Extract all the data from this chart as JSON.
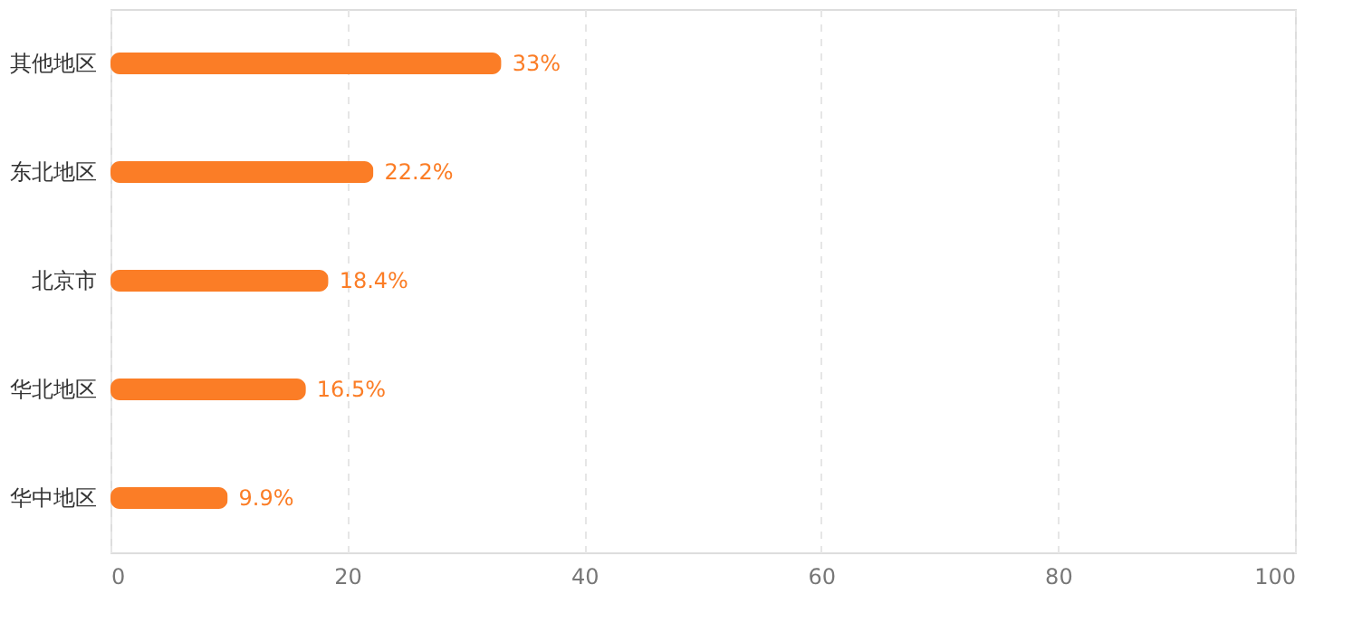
{
  "chart_data": {
    "type": "bar",
    "orientation": "horizontal",
    "categories": [
      "其他地区",
      "东北地区",
      "北京市",
      "华北地区",
      "华中地区"
    ],
    "values": [
      33,
      22.2,
      18.4,
      16.5,
      9.9
    ],
    "value_labels": [
      "33%",
      "22.2%",
      "18.4%",
      "16.5%",
      "9.9%"
    ],
    "color": "#fb7d26",
    "xlim": [
      0,
      100
    ],
    "xticks": [
      0,
      20,
      40,
      60,
      80,
      100
    ],
    "grid": "x"
  }
}
